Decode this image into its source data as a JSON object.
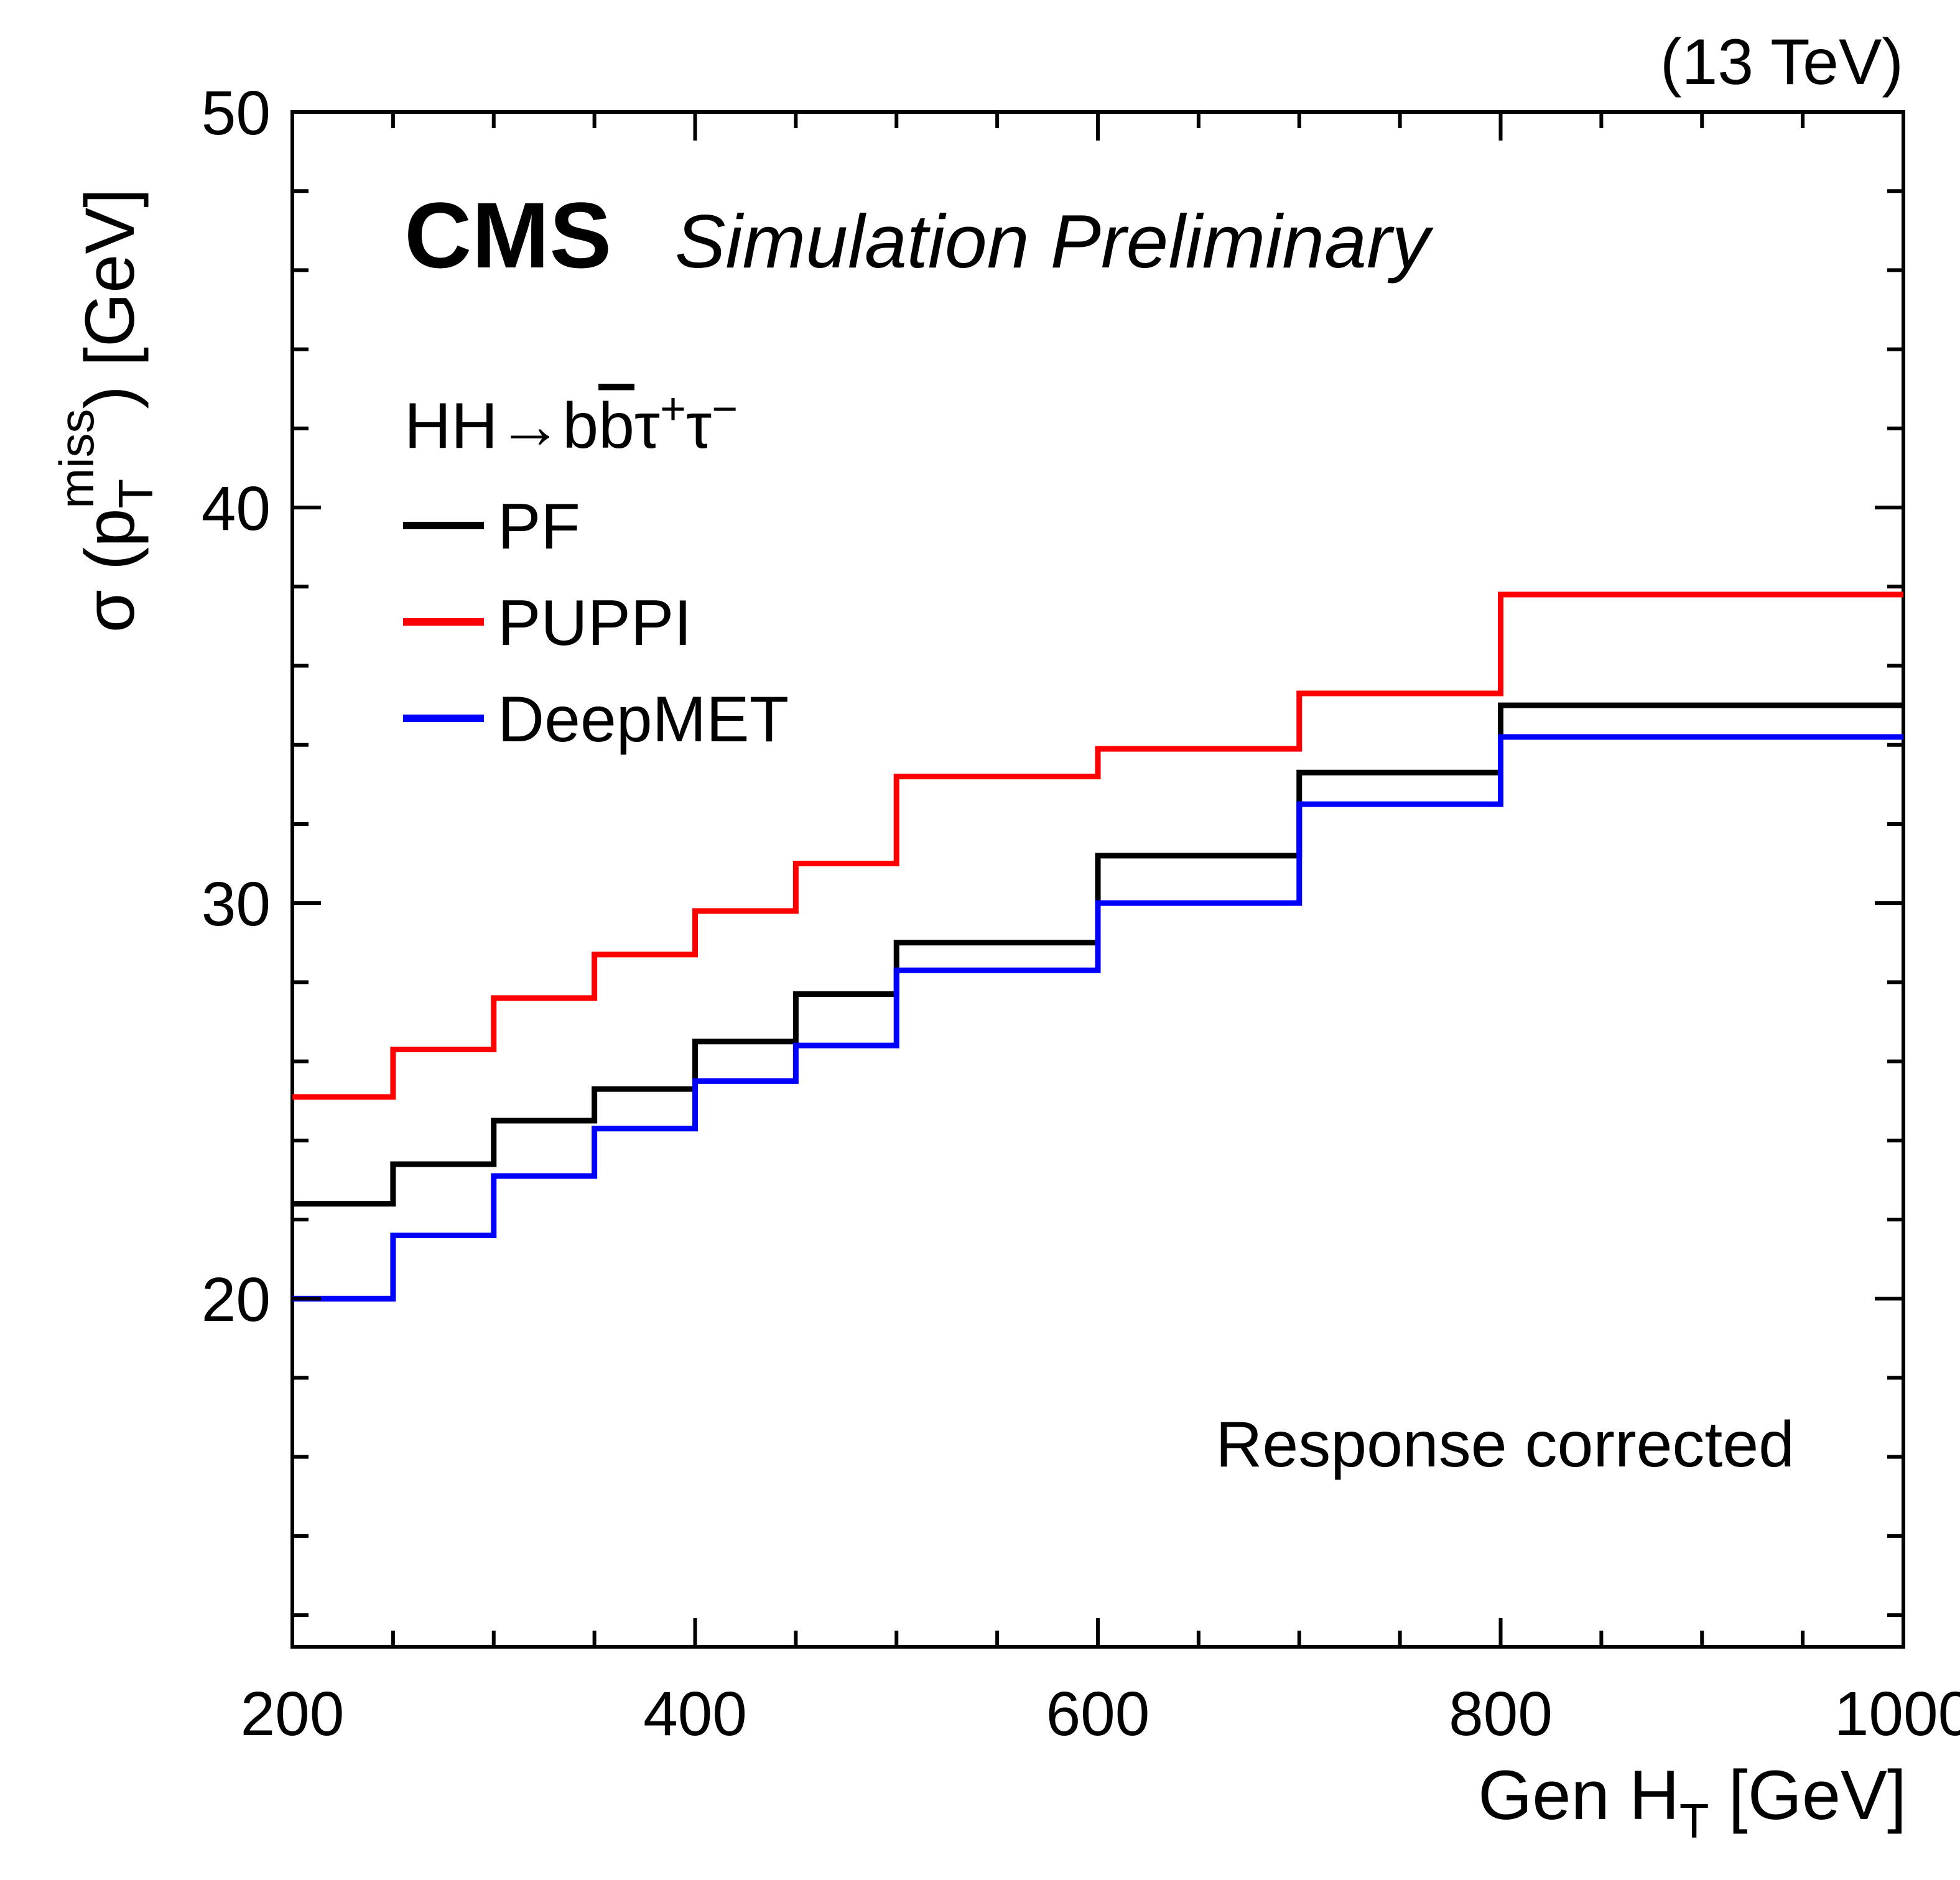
{
  "header": {
    "energy_label": "(13 TeV)",
    "experiment": "CMS",
    "experiment_sublabel": "Simulation Preliminary"
  },
  "legend": {
    "title_parts": {
      "p1": "HH→b",
      "bbar": "b",
      "p2": "τ",
      "sup1": "+",
      "p3": "τ",
      "sup2": "−"
    },
    "items": [
      {
        "label": "PF"
      },
      {
        "label": "PUPPI"
      },
      {
        "label": "DeepMET"
      }
    ]
  },
  "annotation": "Response corrected",
  "chart_data": {
    "type": "line",
    "step_histogram": true,
    "title": "",
    "xlabel": {
      "prefix": "Gen H",
      "sub": "T",
      "suffix": " [GeV]"
    },
    "ylabel": {
      "prefix": "σ (p",
      "sub": "T",
      "sup": "miss",
      "suffix": ") [GeV]"
    },
    "xlim": [
      200,
      1000
    ],
    "ylim": [
      11.2,
      50
    ],
    "x_major_ticks": [
      200,
      400,
      600,
      800,
      1000
    ],
    "x_minor_step": 50,
    "y_major_ticks": [
      20,
      30,
      40,
      50
    ],
    "y_minor_step": 2,
    "grid": false,
    "legend_position": "top-left-inside",
    "bin_edges": [
      200,
      250,
      300,
      350,
      400,
      450,
      500,
      600,
      700,
      800,
      1000
    ],
    "series": [
      {
        "name": "PF",
        "color": "#000000",
        "values": [
          22.4,
          23.4,
          24.5,
          25.3,
          26.5,
          27.7,
          29.0,
          31.2,
          33.3,
          35.0
        ]
      },
      {
        "name": "PUPPI",
        "color": "#ff0000",
        "values": [
          25.1,
          26.3,
          27.6,
          28.7,
          29.8,
          31.0,
          33.2,
          33.9,
          35.3,
          37.8
        ]
      },
      {
        "name": "DeepMET",
        "color": "#0000ff",
        "values": [
          20.0,
          21.6,
          23.1,
          24.3,
          25.5,
          26.4,
          28.3,
          30.0,
          32.5,
          34.2
        ]
      }
    ]
  }
}
